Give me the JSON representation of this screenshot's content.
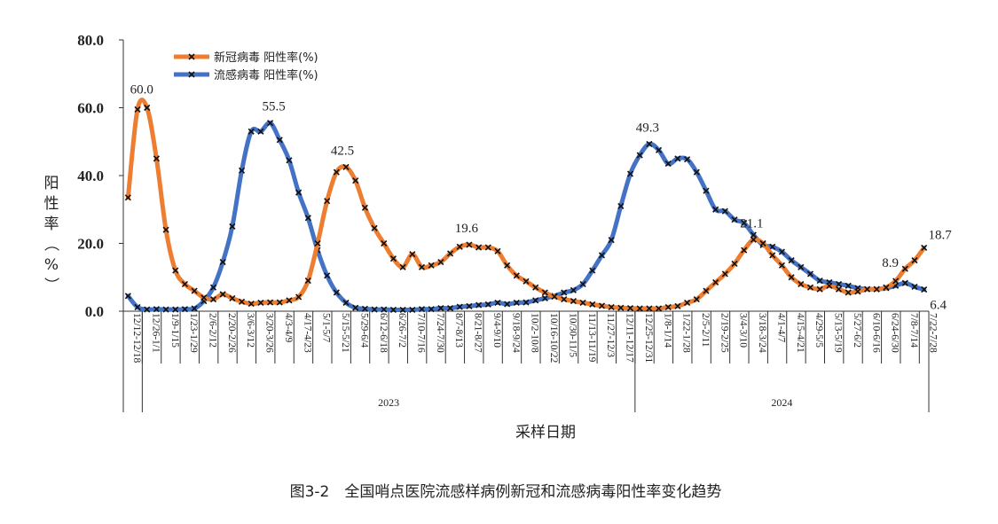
{
  "chart_data": {
    "type": "line",
    "caption": "图3-2　全国哨点医院流感样病例新冠和流感病毒阳性率变化趋势",
    "xlabel": "采样日期",
    "ylabel": "阳性率（%）",
    "ylim": [
      0,
      80
    ],
    "yticks": [
      "0.0",
      "20.0",
      "40.0",
      "60.0",
      "80.0"
    ],
    "grid": false,
    "legend_position": "top-left",
    "x_tick_labels": [
      "12/12-12/18",
      "12/26-1/1",
      "1/9-1/15",
      "1/23-1/29",
      "2/6-2/12",
      "2/20-2/26",
      "3/6-3/12",
      "3/20-3/26",
      "4/3-4/9",
      "4/17-4/23",
      "5/1-5/7",
      "5/15-5/21",
      "5/29-6/4",
      "6/12-6/18",
      "6/26-7/2",
      "7/10-7/16",
      "7/24-7/30",
      "8/7-8/13",
      "8/21-8/27",
      "9/4-9/10",
      "9/18-9/24",
      "10/2-10/8",
      "10/16-10/22",
      "10/30-11/5",
      "11/13-11/19",
      "11/27-12/3",
      "12/11-12/17",
      "12/25-12/31",
      "1/8-1/14",
      "1/22-1/28",
      "2/5-2/11",
      "2/19-2/25",
      "3/4-3/10",
      "3/18-3/24",
      "4/1-4/7",
      "4/15-4/21",
      "4/29-5/5",
      "5/13-5/19",
      "5/27-6/2",
      "6/10-6/16",
      "6/24-6/30",
      "7/8-7/14",
      "7/22-7/28"
    ],
    "years": [
      "2023",
      "2024"
    ],
    "series": [
      {
        "name": "新冠病毒 阳性率(%)",
        "color": "#ED7D31",
        "values": [
          33.5,
          59.5,
          60.0,
          45,
          24,
          12,
          8,
          6,
          4,
          3.5,
          5,
          3.8,
          2.8,
          2.2,
          2.5,
          2.6,
          2.6,
          3.2,
          4.2,
          9,
          20,
          32.5,
          41,
          42.5,
          38.5,
          30.5,
          24.5,
          20,
          15.5,
          13,
          16.8,
          13,
          13.5,
          14.5,
          17,
          19,
          19.6,
          18.8,
          18.8,
          17.7,
          13.5,
          10.5,
          8.8,
          7,
          5.5,
          4.3,
          3.5,
          3,
          2.5,
          2,
          1.6,
          1.2,
          1,
          0.9,
          0.8,
          0.8,
          0.8,
          1.2,
          1.5,
          2.5,
          3.5,
          6,
          8.5,
          11,
          14,
          18,
          21.1,
          20,
          16.5,
          13.5,
          10,
          8,
          7,
          6.5,
          7.5,
          6.5,
          5.5,
          5.8,
          6.5,
          6.5,
          7,
          8.9,
          12.5,
          15,
          18.7
        ]
      },
      {
        "name": "流感病毒 阳性率(%)",
        "color": "#4472C4",
        "values": [
          4.5,
          1.2,
          0.5,
          0.6,
          0.5,
          0.5,
          0.6,
          0.8,
          3,
          7,
          14.5,
          25,
          41.5,
          53,
          53,
          55.5,
          50.5,
          44.5,
          35,
          27.5,
          18,
          10.5,
          5.5,
          2.5,
          1,
          0.7,
          0.5,
          0.5,
          0.4,
          0.4,
          0.4,
          0.6,
          0.6,
          0.9,
          0.9,
          1.3,
          1.5,
          1.8,
          2,
          2.5,
          2.1,
          2.5,
          2.6,
          3.2,
          3.8,
          4.5,
          5.5,
          6.2,
          8,
          12,
          16.5,
          21,
          31,
          40.5,
          46,
          49.3,
          47.5,
          43.5,
          45,
          44.8,
          41,
          35.5,
          30,
          29.5,
          27,
          26,
          22.5,
          19.5,
          19,
          17.5,
          15,
          13,
          11,
          9,
          8.5,
          8,
          7.5,
          6.8,
          6.5,
          6.5,
          6.8,
          7.5,
          8.3,
          7.2,
          6.4
        ]
      }
    ],
    "annotations": [
      {
        "series": 0,
        "index": 2,
        "text": "60.0"
      },
      {
        "series": 1,
        "index": 15,
        "text": "55.5"
      },
      {
        "series": 0,
        "index": 23,
        "text": "42.5"
      },
      {
        "series": 0,
        "index": 36,
        "text": "19.6"
      },
      {
        "series": 1,
        "index": 55,
        "text": "49.3"
      },
      {
        "series": 0,
        "index": 66,
        "text": "21.1"
      },
      {
        "series": 0,
        "index": 81,
        "text": "8.9"
      },
      {
        "series": 0,
        "index": 84,
        "text": "18.7"
      },
      {
        "series": 1,
        "index": 84,
        "text": "6.4"
      }
    ]
  }
}
